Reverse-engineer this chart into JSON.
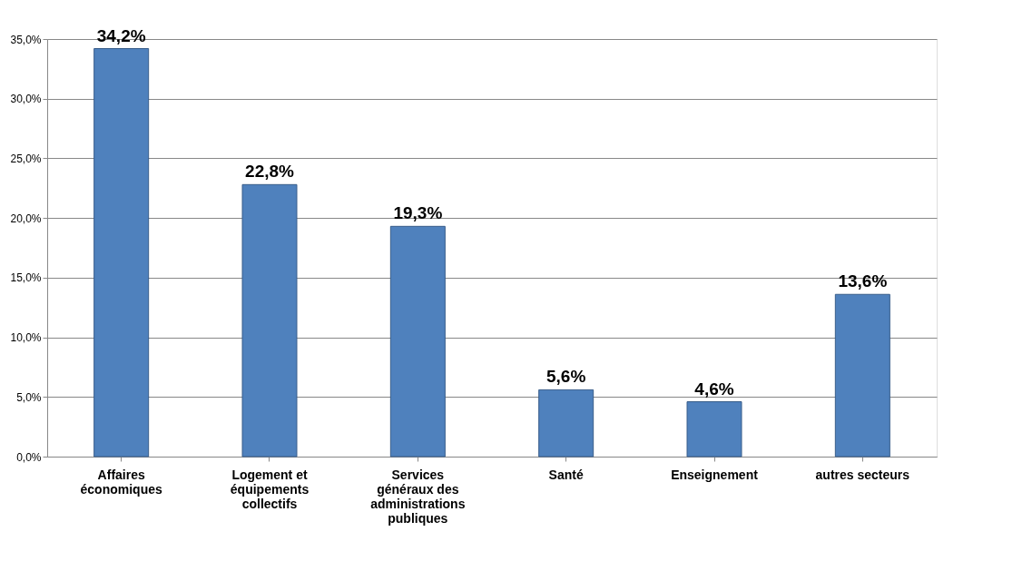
{
  "chart_data": {
    "type": "bar",
    "categories": [
      "Affaires économiques",
      "Logement et équipements collectifs",
      "Services généraux des administrations publiques",
      "Santé",
      "Enseignement",
      "autres secteurs"
    ],
    "values": [
      34.2,
      22.8,
      19.3,
      5.6,
      4.6,
      13.6
    ],
    "value_labels": [
      "34,2%",
      "22,8%",
      "19,3%",
      "5,6%",
      "4,6%",
      "13,6%"
    ],
    "color": "#4f81bd",
    "ylim": [
      0,
      35
    ],
    "yticks": [
      {
        "value": 0,
        "label": "0,0%"
      },
      {
        "value": 5,
        "label": "5,0%"
      },
      {
        "value": 10,
        "label": "10,0%"
      },
      {
        "value": 15,
        "label": "15,0%"
      },
      {
        "value": 20,
        "label": "20,0%"
      },
      {
        "value": 25,
        "label": "25,0%"
      },
      {
        "value": 30,
        "label": "30,0%"
      },
      {
        "value": 35,
        "label": "35,0%"
      }
    ],
    "grid": "y"
  }
}
